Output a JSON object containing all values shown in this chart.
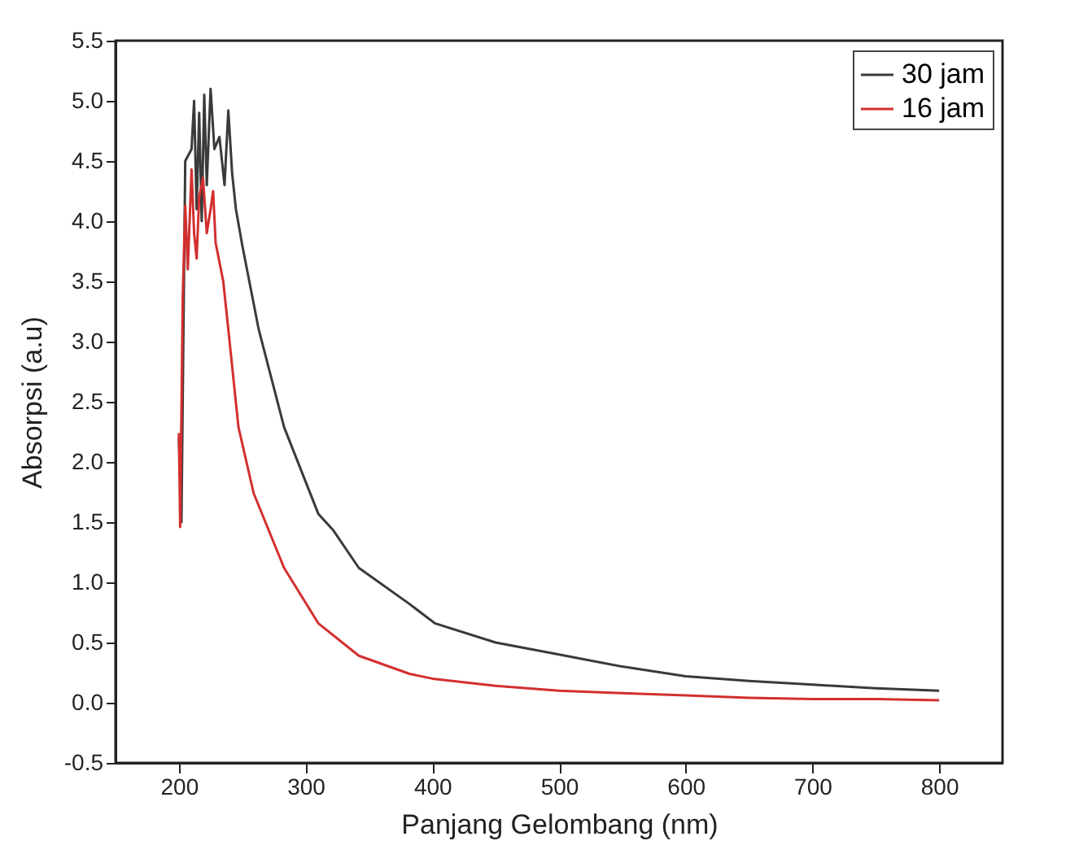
{
  "chart_data": {
    "type": "line",
    "xlabel": "Panjang Gelombang (nm)",
    "ylabel": "Absorpsi (a.u)",
    "xlim": [
      150,
      850
    ],
    "ylim": [
      -0.5,
      5.5
    ],
    "xticks": [
      200,
      300,
      400,
      500,
      600,
      700,
      800
    ],
    "yticks": [
      -0.5,
      {
        "value": 0,
        "label": "0.0"
      },
      0.5,
      {
        "value": 1,
        "label": "1.0"
      },
      1.5,
      {
        "value": 2,
        "label": "2.0"
      },
      2.5,
      {
        "value": 3,
        "label": "3.0"
      },
      3.5,
      {
        "value": 4,
        "label": "4.0"
      },
      4.5,
      {
        "value": 5,
        "label": "5.0"
      },
      5.5
    ],
    "legend": "top right",
    "grid": false,
    "marker": "none",
    "line_style": "solid",
    "series": [
      {
        "name": "30 jam",
        "color": "#3a3a3a",
        "x": [
          200,
          202,
          205,
          210,
          212,
          214,
          216,
          218,
          220,
          222,
          225,
          228,
          232,
          236,
          239,
          242,
          245,
          250,
          263,
          283,
          310,
          322,
          342,
          382,
          402,
          450,
          500,
          550,
          600,
          650,
          700,
          750,
          800
        ],
        "values": [
          2.2,
          1.5,
          4.5,
          4.6,
          5.0,
          4.1,
          4.9,
          4.0,
          5.05,
          4.3,
          5.1,
          4.6,
          4.7,
          4.3,
          4.92,
          4.4,
          4.1,
          3.8,
          3.1,
          2.29,
          1.57,
          1.43,
          1.12,
          0.82,
          0.66,
          0.5,
          0.4,
          0.3,
          0.22,
          0.18,
          0.15,
          0.12,
          0.1
        ]
      },
      {
        "name": "16 jam",
        "color": "#d32f2f",
        "x": [
          200,
          201,
          203,
          205,
          207,
          210,
          212,
          214,
          216,
          219,
          222,
          225,
          227,
          229,
          235,
          239,
          247,
          259,
          283,
          310,
          342,
          382,
          400,
          450,
          500,
          550,
          600,
          650,
          700,
          750,
          800
        ],
        "values": [
          2.24,
          1.46,
          3.36,
          4.13,
          3.6,
          4.43,
          3.9,
          3.69,
          4.2,
          4.36,
          3.9,
          4.1,
          4.25,
          3.82,
          3.5,
          3.1,
          2.29,
          1.74,
          1.12,
          0.66,
          0.39,
          0.24,
          0.2,
          0.14,
          0.1,
          0.08,
          0.06,
          0.04,
          0.03,
          0.03,
          0.02
        ]
      }
    ]
  }
}
